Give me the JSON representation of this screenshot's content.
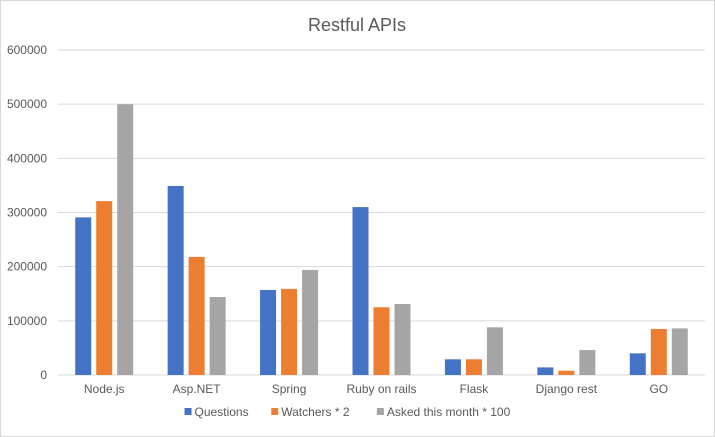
{
  "chart_data": {
    "type": "bar",
    "title": "Restful APIs",
    "xlabel": "",
    "ylabel": "",
    "ylim": [
      0,
      600000
    ],
    "yticks": [
      0,
      100000,
      200000,
      300000,
      400000,
      500000,
      600000
    ],
    "ytick_labels": [
      "0",
      "100000",
      "200000",
      "300000",
      "400000",
      "500000",
      "600000"
    ],
    "grid": true,
    "legend_position": "bottom",
    "categories": [
      "Node.js",
      "Asp.NET",
      "Spring",
      "Ruby on rails",
      "Flask",
      "Django rest",
      "GO"
    ],
    "series": [
      {
        "name": "Questions",
        "color": "#4472c4",
        "values": [
          291000,
          349000,
          157000,
          310000,
          29000,
          14000,
          40000
        ]
      },
      {
        "name": "Watchers * 2",
        "color": "#ed7d31",
        "values": [
          321000,
          218000,
          159000,
          125000,
          29000,
          8000,
          85000
        ]
      },
      {
        "name": "Asked this month * 100",
        "color": "#a5a5a5",
        "values": [
          500000,
          144000,
          194000,
          131000,
          88000,
          46000,
          86000
        ]
      }
    ]
  }
}
